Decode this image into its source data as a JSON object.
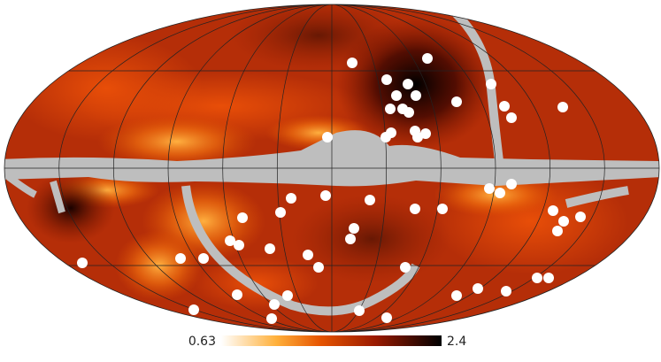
{
  "colorbar": {
    "min": 0.63,
    "max": 2.4
  }
}
